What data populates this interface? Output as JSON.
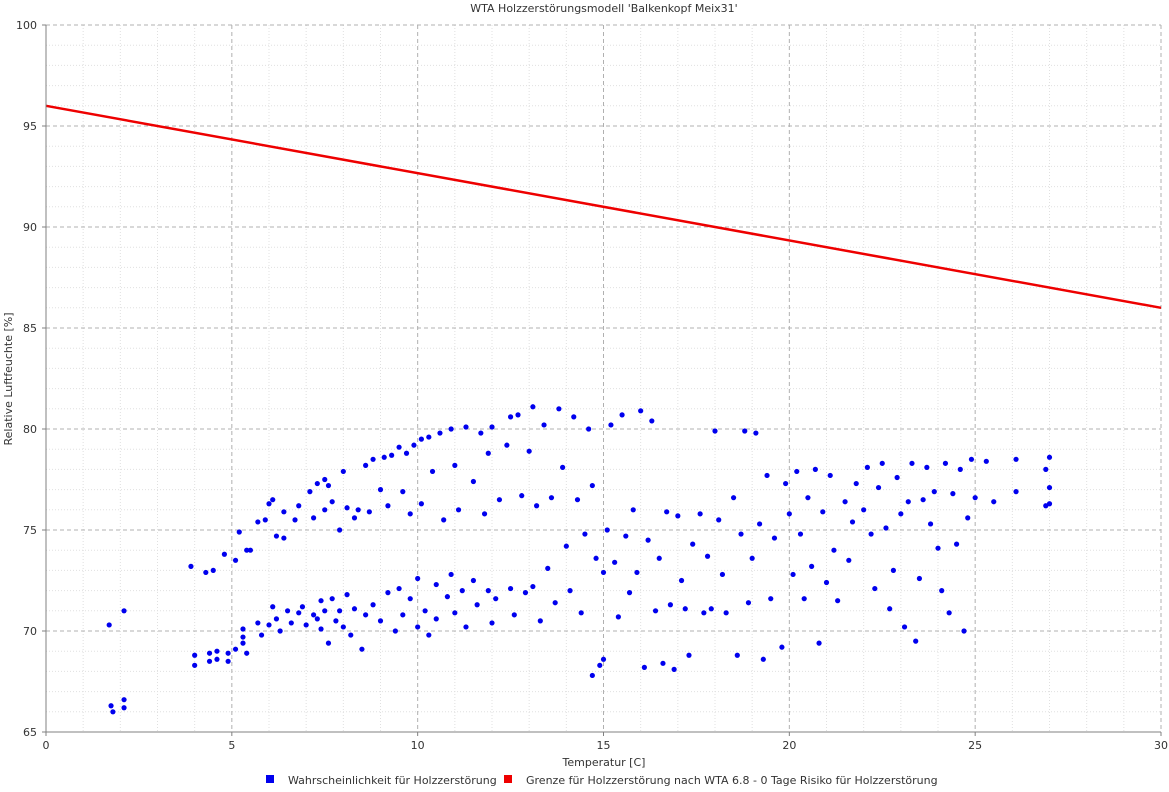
{
  "chart_data": {
    "type": "scatter",
    "title": "WTA Holzzerstörungsmodell 'Balkenkopf Meix31'",
    "xlabel": "Temperatur [C]",
    "ylabel": "Relative Luftfeuchte [%]",
    "xlim": [
      0,
      30
    ],
    "ylim": [
      65,
      100
    ],
    "xticks": [
      0,
      5,
      10,
      15,
      20,
      25,
      30
    ],
    "yticks": [
      65,
      70,
      75,
      80,
      85,
      90,
      95,
      100
    ],
    "grid": true,
    "legend_position": "bottom",
    "series": [
      {
        "name": "Wahrscheinlichkeit für Holzzerstörung",
        "type": "scatter",
        "color": "#0000ee",
        "points": [
          [
            1.7,
            70.3
          ],
          [
            1.75,
            66.3
          ],
          [
            1.8,
            66.0
          ],
          [
            2.1,
            71.0
          ],
          [
            2.1,
            66.6
          ],
          [
            2.1,
            66.2
          ],
          [
            3.9,
            73.2
          ],
          [
            4.0,
            68.8
          ],
          [
            4.0,
            68.3
          ],
          [
            4.3,
            72.9
          ],
          [
            4.4,
            68.9
          ],
          [
            4.4,
            68.5
          ],
          [
            4.5,
            73.0
          ],
          [
            4.6,
            69.0
          ],
          [
            4.6,
            68.6
          ],
          [
            4.8,
            73.8
          ],
          [
            4.9,
            68.9
          ],
          [
            4.9,
            68.5
          ],
          [
            5.1,
            73.5
          ],
          [
            5.1,
            69.1
          ],
          [
            5.2,
            74.9
          ],
          [
            5.3,
            70.1
          ],
          [
            5.3,
            69.7
          ],
          [
            5.3,
            69.4
          ],
          [
            5.4,
            74.0
          ],
          [
            5.4,
            68.9
          ],
          [
            5.5,
            74.0
          ],
          [
            5.7,
            70.4
          ],
          [
            5.7,
            75.4
          ],
          [
            5.8,
            69.8
          ],
          [
            5.9,
            75.5
          ],
          [
            6.0,
            76.3
          ],
          [
            6.0,
            70.3
          ],
          [
            6.1,
            76.5
          ],
          [
            6.1,
            71.2
          ],
          [
            6.2,
            74.7
          ],
          [
            6.2,
            70.6
          ],
          [
            6.3,
            70.0
          ],
          [
            6.4,
            75.9
          ],
          [
            6.4,
            74.6
          ],
          [
            6.5,
            71.0
          ],
          [
            6.6,
            70.4
          ],
          [
            6.7,
            75.5
          ],
          [
            6.8,
            76.2
          ],
          [
            6.8,
            70.9
          ],
          [
            6.9,
            71.2
          ],
          [
            7.0,
            70.3
          ],
          [
            7.1,
            76.9
          ],
          [
            7.2,
            75.6
          ],
          [
            7.2,
            70.8
          ],
          [
            7.3,
            77.3
          ],
          [
            7.3,
            70.6
          ],
          [
            7.4,
            71.5
          ],
          [
            7.4,
            70.1
          ],
          [
            7.5,
            77.5
          ],
          [
            7.5,
            76.0
          ],
          [
            7.5,
            71.0
          ],
          [
            7.6,
            77.2
          ],
          [
            7.6,
            69.4
          ],
          [
            7.7,
            76.4
          ],
          [
            7.7,
            71.6
          ],
          [
            7.8,
            70.5
          ],
          [
            7.9,
            75.0
          ],
          [
            7.9,
            71.0
          ],
          [
            8.0,
            77.9
          ],
          [
            8.0,
            70.2
          ],
          [
            8.1,
            76.1
          ],
          [
            8.1,
            71.8
          ],
          [
            8.2,
            69.8
          ],
          [
            8.3,
            75.6
          ],
          [
            8.3,
            71.1
          ],
          [
            8.4,
            76.0
          ],
          [
            8.5,
            69.1
          ],
          [
            8.6,
            78.2
          ],
          [
            8.6,
            70.8
          ],
          [
            8.7,
            75.9
          ],
          [
            8.8,
            78.5
          ],
          [
            8.8,
            71.3
          ],
          [
            9.0,
            77.0
          ],
          [
            9.0,
            70.5
          ],
          [
            9.1,
            78.6
          ],
          [
            9.2,
            76.2
          ],
          [
            9.2,
            71.9
          ],
          [
            9.3,
            78.7
          ],
          [
            9.4,
            70.0
          ],
          [
            9.5,
            79.1
          ],
          [
            9.5,
            72.1
          ],
          [
            9.6,
            76.9
          ],
          [
            9.6,
            70.8
          ],
          [
            9.7,
            78.8
          ],
          [
            9.8,
            75.8
          ],
          [
            9.8,
            71.6
          ],
          [
            9.9,
            79.2
          ],
          [
            10.0,
            72.6
          ],
          [
            10.0,
            70.2
          ],
          [
            10.1,
            79.5
          ],
          [
            10.1,
            76.3
          ],
          [
            10.2,
            71.0
          ],
          [
            10.3,
            79.6
          ],
          [
            10.3,
            69.8
          ],
          [
            10.4,
            77.9
          ],
          [
            10.5,
            72.3
          ],
          [
            10.5,
            70.6
          ],
          [
            10.6,
            79.8
          ],
          [
            10.7,
            75.5
          ],
          [
            10.8,
            71.7
          ],
          [
            10.9,
            80.0
          ],
          [
            10.9,
            72.8
          ],
          [
            11.0,
            78.2
          ],
          [
            11.0,
            70.9
          ],
          [
            11.1,
            76.0
          ],
          [
            11.2,
            72.0
          ],
          [
            11.3,
            80.1
          ],
          [
            11.3,
            70.2
          ],
          [
            11.5,
            77.4
          ],
          [
            11.5,
            72.5
          ],
          [
            11.6,
            71.3
          ],
          [
            11.7,
            79.8
          ],
          [
            11.8,
            75.8
          ],
          [
            11.9,
            78.8
          ],
          [
            11.9,
            72.0
          ],
          [
            12.0,
            80.1
          ],
          [
            12.0,
            70.4
          ],
          [
            12.1,
            71.6
          ],
          [
            12.2,
            76.5
          ],
          [
            12.4,
            79.2
          ],
          [
            12.5,
            80.6
          ],
          [
            12.5,
            72.1
          ],
          [
            12.6,
            70.8
          ],
          [
            12.7,
            80.7
          ],
          [
            12.8,
            76.7
          ],
          [
            12.9,
            71.9
          ],
          [
            13.0,
            78.9
          ],
          [
            13.1,
            81.1
          ],
          [
            13.1,
            72.2
          ],
          [
            13.2,
            76.2
          ],
          [
            13.3,
            70.5
          ],
          [
            13.4,
            80.2
          ],
          [
            13.5,
            73.1
          ],
          [
            13.6,
            76.6
          ],
          [
            13.7,
            71.4
          ],
          [
            13.8,
            81.0
          ],
          [
            13.9,
            78.1
          ],
          [
            14.0,
            74.2
          ],
          [
            14.1,
            72.0
          ],
          [
            14.2,
            80.6
          ],
          [
            14.3,
            76.5
          ],
          [
            14.4,
            70.9
          ],
          [
            14.5,
            74.8
          ],
          [
            14.6,
            80.0
          ],
          [
            14.7,
            77.2
          ],
          [
            14.7,
            67.8
          ],
          [
            14.8,
            73.6
          ],
          [
            14.9,
            68.3
          ],
          [
            15.0,
            72.9
          ],
          [
            15.0,
            68.6
          ],
          [
            15.1,
            75.0
          ],
          [
            15.2,
            80.2
          ],
          [
            15.3,
            73.4
          ],
          [
            15.4,
            70.7
          ],
          [
            15.5,
            80.7
          ],
          [
            15.6,
            74.7
          ],
          [
            15.7,
            71.9
          ],
          [
            15.8,
            76.0
          ],
          [
            15.9,
            72.9
          ],
          [
            16.0,
            80.9
          ],
          [
            16.1,
            68.2
          ],
          [
            16.2,
            74.5
          ],
          [
            16.3,
            80.4
          ],
          [
            16.4,
            71.0
          ],
          [
            16.5,
            73.6
          ],
          [
            16.6,
            68.4
          ],
          [
            16.7,
            75.9
          ],
          [
            16.8,
            71.3
          ],
          [
            16.9,
            68.1
          ],
          [
            17.0,
            75.7
          ],
          [
            17.1,
            72.5
          ],
          [
            17.2,
            71.1
          ],
          [
            17.3,
            68.8
          ],
          [
            17.4,
            74.3
          ],
          [
            17.6,
            75.8
          ],
          [
            17.7,
            70.9
          ],
          [
            17.8,
            73.7
          ],
          [
            17.9,
            71.1
          ],
          [
            18.0,
            79.9
          ],
          [
            18.1,
            75.5
          ],
          [
            18.2,
            72.8
          ],
          [
            18.3,
            70.9
          ],
          [
            18.5,
            76.6
          ],
          [
            18.6,
            68.8
          ],
          [
            18.7,
            74.8
          ],
          [
            18.8,
            79.9
          ],
          [
            18.9,
            71.4
          ],
          [
            19.0,
            73.6
          ],
          [
            19.1,
            79.8
          ],
          [
            19.2,
            75.3
          ],
          [
            19.3,
            68.6
          ],
          [
            19.4,
            77.7
          ],
          [
            19.5,
            71.6
          ],
          [
            19.6,
            74.6
          ],
          [
            19.8,
            69.2
          ],
          [
            19.9,
            77.3
          ],
          [
            20.0,
            75.8
          ],
          [
            20.1,
            72.8
          ],
          [
            20.2,
            77.9
          ],
          [
            20.3,
            74.8
          ],
          [
            20.4,
            71.6
          ],
          [
            20.5,
            76.6
          ],
          [
            20.6,
            73.2
          ],
          [
            20.7,
            78.0
          ],
          [
            20.8,
            69.4
          ],
          [
            20.9,
            75.9
          ],
          [
            21.0,
            72.4
          ],
          [
            21.1,
            77.7
          ],
          [
            21.2,
            74.0
          ],
          [
            21.3,
            71.5
          ],
          [
            21.5,
            76.4
          ],
          [
            21.6,
            73.5
          ],
          [
            21.7,
            75.4
          ],
          [
            21.8,
            77.3
          ],
          [
            22.0,
            76.0
          ],
          [
            22.1,
            78.1
          ],
          [
            22.2,
            74.8
          ],
          [
            22.3,
            72.1
          ],
          [
            22.4,
            77.1
          ],
          [
            22.5,
            78.3
          ],
          [
            22.6,
            75.1
          ],
          [
            22.7,
            71.1
          ],
          [
            22.8,
            73.0
          ],
          [
            22.9,
            77.6
          ],
          [
            23.0,
            75.8
          ],
          [
            23.1,
            70.2
          ],
          [
            23.2,
            76.4
          ],
          [
            23.3,
            78.3
          ],
          [
            23.4,
            69.5
          ],
          [
            23.5,
            72.6
          ],
          [
            23.6,
            76.5
          ],
          [
            23.7,
            78.1
          ],
          [
            23.8,
            75.3
          ],
          [
            23.9,
            76.9
          ],
          [
            24.0,
            74.1
          ],
          [
            24.1,
            72.0
          ],
          [
            24.2,
            78.3
          ],
          [
            24.3,
            70.9
          ],
          [
            24.4,
            76.8
          ],
          [
            24.5,
            74.3
          ],
          [
            24.6,
            78.0
          ],
          [
            24.7,
            70.0
          ],
          [
            24.8,
            75.6
          ],
          [
            24.9,
            78.5
          ],
          [
            25.0,
            76.6
          ],
          [
            25.3,
            78.4
          ],
          [
            25.5,
            76.4
          ],
          [
            26.1,
            78.5
          ],
          [
            26.1,
            76.9
          ],
          [
            26.9,
            78.0
          ],
          [
            26.9,
            76.2
          ],
          [
            27.0,
            78.6
          ],
          [
            27.0,
            77.1
          ],
          [
            27.0,
            76.3
          ]
        ]
      },
      {
        "name": "Grenze für Holzzerstörung nach WTA 6.8 - 0 Tage Risiko für Holzzerstörung",
        "type": "line",
        "color": "#ee0000",
        "x": [
          0,
          30
        ],
        "y": [
          96,
          86
        ]
      }
    ]
  }
}
